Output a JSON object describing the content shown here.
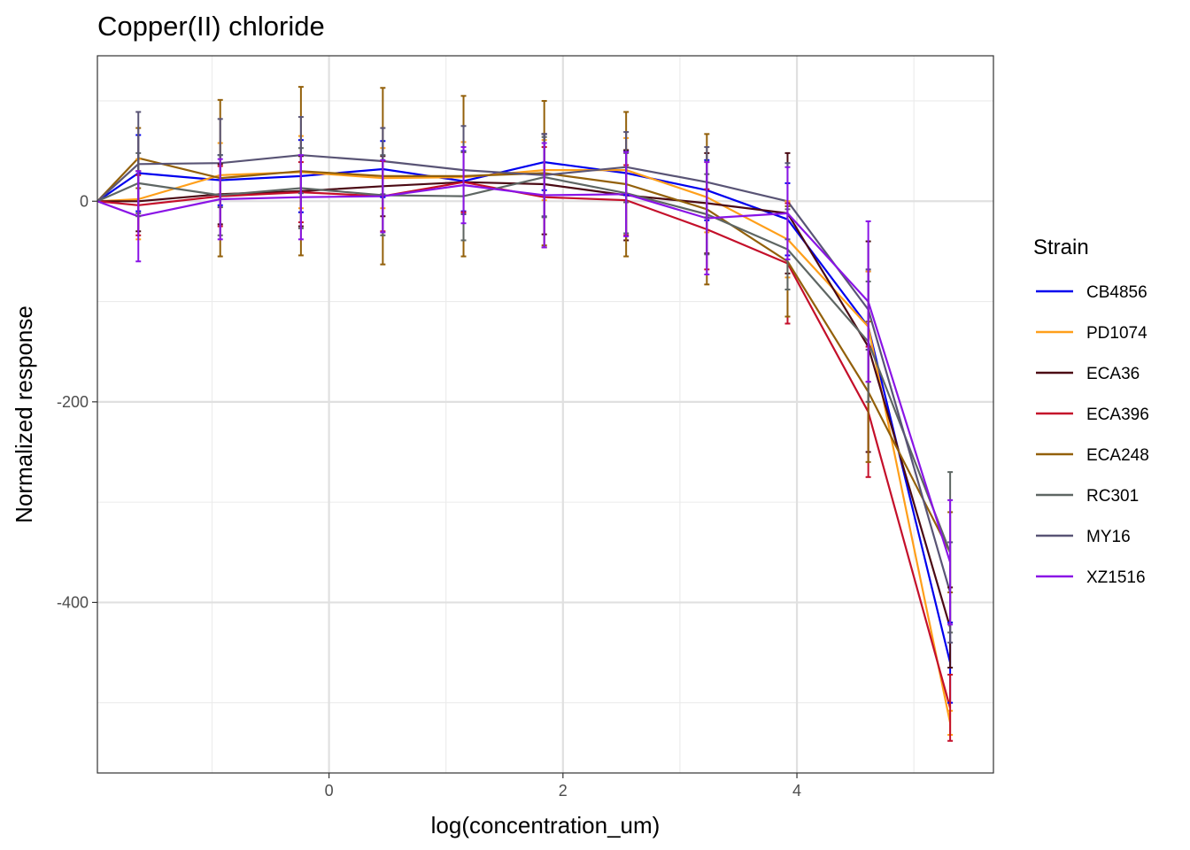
{
  "chart_data": {
    "type": "line",
    "title": "Copper(II) chloride",
    "xlabel": "log(concentration_um)",
    "ylabel": "Normalized response",
    "xlim": [
      -1.98,
      5.68
    ],
    "ylim": [
      -570,
      145
    ],
    "x_major_ticks": [
      0,
      2,
      4
    ],
    "x_minor_ticks": [
      -1,
      1,
      3,
      5
    ],
    "x_tick_labels": [
      "0",
      "2",
      "4"
    ],
    "y_major_ticks": [
      -400,
      -200,
      0
    ],
    "y_minor_ticks": [
      -500,
      -300,
      -100,
      100
    ],
    "y_tick_labels": [
      "-400",
      "-200",
      "0"
    ],
    "grid": true,
    "legend_title": "Strain",
    "legend_position": "right",
    "x": [
      -1.98,
      -1.63,
      -0.93,
      -0.24,
      0.46,
      1.15,
      1.84,
      2.54,
      3.23,
      3.92,
      4.61,
      5.31
    ],
    "series": [
      {
        "name": "CB4856",
        "color": "#0000ee",
        "values": [
          0,
          28,
          21,
          25,
          32,
          20,
          39,
          28,
          11,
          -18,
          -125,
          -460
        ],
        "err": [
          0,
          38,
          25,
          36,
          28,
          30,
          28,
          22,
          30,
          36,
          55,
          40
        ]
      },
      {
        "name": "PD1074",
        "color": "#ff9f1a",
        "values": [
          0,
          2,
          26,
          29,
          23,
          24,
          31,
          31,
          4,
          -38,
          -125,
          -520
        ],
        "err": [
          0,
          40,
          32,
          36,
          30,
          35,
          30,
          32,
          35,
          38,
          55,
          12
        ]
      },
      {
        "name": "ECA36",
        "color": "#4b0a14",
        "values": [
          0,
          0,
          7,
          10,
          15,
          19,
          17,
          6,
          -2,
          -12,
          -145,
          -425
        ],
        "err": [
          0,
          30,
          30,
          35,
          30,
          30,
          50,
          45,
          50,
          60,
          105,
          40
        ]
      },
      {
        "name": "ECA396",
        "color": "#c40f2a",
        "values": [
          0,
          -4,
          5,
          9,
          5,
          19,
          4,
          1,
          -28,
          -62,
          -210,
          -505
        ],
        "err": [
          0,
          30,
          30,
          30,
          35,
          30,
          50,
          35,
          40,
          60,
          65,
          33
        ]
      },
      {
        "name": "ECA248",
        "color": "#93600a",
        "values": [
          0,
          43,
          23,
          30,
          25,
          25,
          28,
          17,
          -8,
          -60,
          -190,
          -350
        ],
        "err": [
          0,
          30,
          78,
          84,
          88,
          80,
          72,
          72,
          75,
          55,
          70,
          40
        ]
      },
      {
        "name": "RC301",
        "color": "#5e6663",
        "values": [
          0,
          18,
          6,
          13,
          6,
          5,
          24,
          8,
          -13,
          -48,
          -140,
          -350
        ],
        "err": [
          0,
          30,
          40,
          40,
          40,
          44,
          40,
          40,
          40,
          40,
          60,
          80
        ]
      },
      {
        "name": "MY16",
        "color": "#595475",
        "values": [
          0,
          37,
          38,
          46,
          40,
          31,
          26,
          34,
          19,
          0,
          -108,
          -390
        ],
        "err": [
          0,
          52,
          44,
          38,
          33,
          44,
          41,
          35,
          35,
          38,
          40,
          50
        ]
      },
      {
        "name": "XZ1516",
        "color": "#8a14e6",
        "values": [
          0,
          -15,
          2,
          4,
          5,
          16,
          6,
          7,
          -17,
          -12,
          -100,
          -360
        ],
        "err": [
          0,
          45,
          40,
          42,
          36,
          38,
          52,
          42,
          56,
          46,
          80,
          62
        ]
      }
    ]
  }
}
